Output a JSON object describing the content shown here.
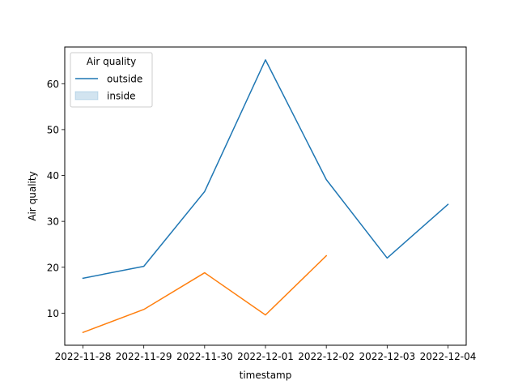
{
  "chart_data": {
    "type": "line",
    "title": "",
    "xlabel": "timestamp",
    "ylabel": "Air quality",
    "x": [
      "2022-11-28",
      "2022-11-29",
      "2022-11-30",
      "2022-12-01",
      "2022-12-02",
      "2022-12-03",
      "2022-12-04"
    ],
    "xlim": [
      "2022-11-28",
      "2022-12-04"
    ],
    "ylim": [
      3.0,
      68.0
    ],
    "yticks": [
      10,
      20,
      30,
      40,
      50,
      60
    ],
    "series": [
      {
        "name": "outside",
        "color": "#1f77b4",
        "values": [
          17.6,
          20.2,
          36.5,
          65.2,
          39.1,
          22.0,
          33.7
        ]
      },
      {
        "name": "",
        "color": "#ff7f0e",
        "values": [
          5.8,
          10.8,
          18.8,
          9.6,
          22.5,
          null,
          null
        ]
      }
    ],
    "legend": {
      "title": "Air quality",
      "placement": "top-left",
      "entries": [
        {
          "label": "outside",
          "kind": "line",
          "color": "#1f77b4"
        },
        {
          "label": "inside",
          "kind": "patch",
          "color": "#1f77b4"
        }
      ]
    },
    "grid": false
  }
}
